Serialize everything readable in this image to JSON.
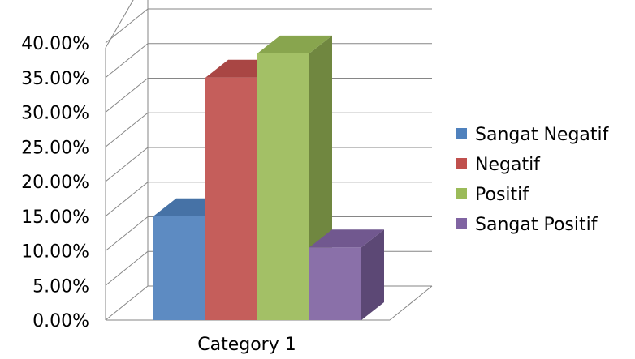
{
  "chart_data": {
    "type": "bar",
    "style": "3d-clustered-column",
    "title": "",
    "xlabel": "",
    "ylabel": "",
    "categories": [
      "Category 1"
    ],
    "series": [
      {
        "name": "Sangat Negatif",
        "values": [
          15.0
        ],
        "color": "#4f81bd"
      },
      {
        "name": "Negatif",
        "values": [
          35.0
        ],
        "color": "#c0504d"
      },
      {
        "name": "Positif",
        "values": [
          38.5
        ],
        "color": "#9bbb59"
      },
      {
        "name": "Sangat Positif",
        "values": [
          10.5
        ],
        "color": "#8064a2"
      }
    ],
    "ylim": [
      0,
      40
    ],
    "yticks": [
      "0.00%",
      "5.00%",
      "10.00%",
      "15.00%",
      "20.00%",
      "25.00%",
      "30.00%",
      "35.00%",
      "40.00%"
    ],
    "grid": true,
    "legend": "right"
  }
}
